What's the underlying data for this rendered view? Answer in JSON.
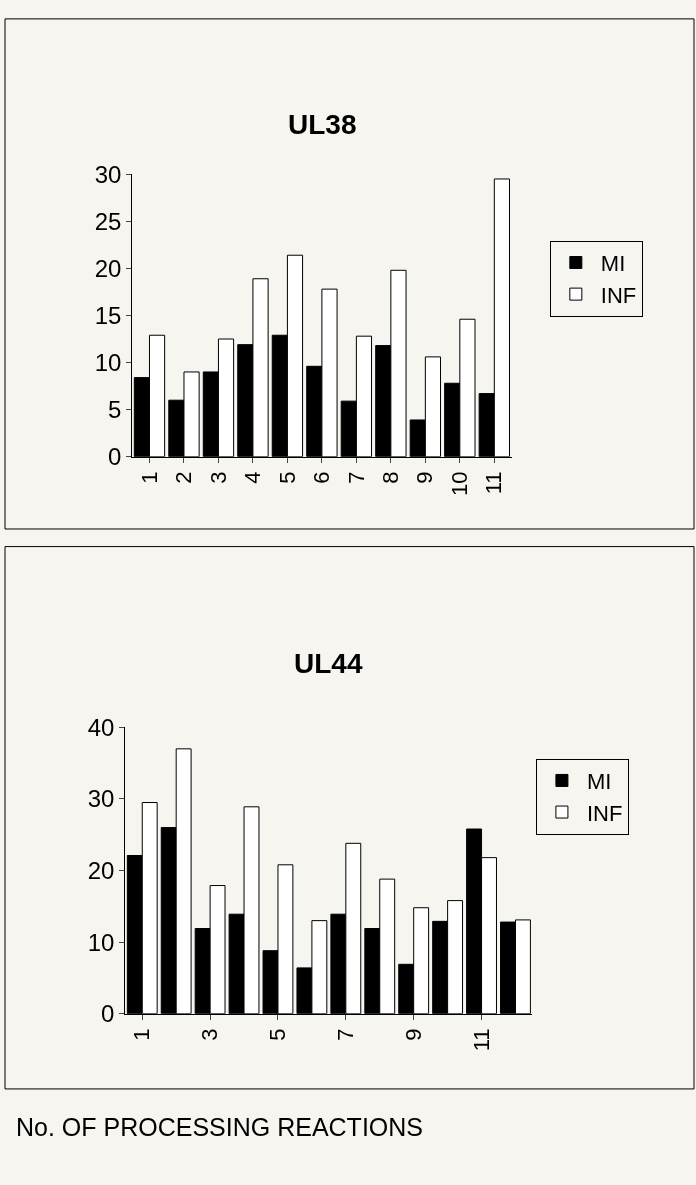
{
  "chart_data": [
    {
      "type": "bar",
      "title": "UL38",
      "categories": [
        "1",
        "2",
        "3",
        "4",
        "5",
        "6",
        "7",
        "8",
        "9",
        "10",
        "11"
      ],
      "series": [
        {
          "name": "MI",
          "color": "#000000",
          "values": [
            8.4,
            6.0,
            9.0,
            11.9,
            12.9,
            9.6,
            5.9,
            11.8,
            3.9,
            7.8,
            6.7
          ]
        },
        {
          "name": "INF",
          "color": "#ffffff",
          "values": [
            12.9,
            9.0,
            12.5,
            18.9,
            21.4,
            17.8,
            12.8,
            19.8,
            10.6,
            14.6,
            29.5
          ]
        }
      ],
      "ylim": [
        0,
        30
      ],
      "yticks": [
        0,
        5,
        10,
        15,
        20,
        25,
        30
      ],
      "legend": "right",
      "grid": false
    },
    {
      "type": "bar",
      "title": "UL44",
      "categories": [
        "1",
        null,
        "3",
        null,
        "5",
        null,
        "7",
        null,
        "9",
        null,
        "11",
        null
      ],
      "series": [
        {
          "name": "MI",
          "color": "#000000",
          "values": [
            22.1,
            26.0,
            11.9,
            13.9,
            8.8,
            6.4,
            13.9,
            11.9,
            6.9,
            12.9,
            25.8,
            12.8
          ]
        },
        {
          "name": "INF",
          "color": "#ffffff",
          "values": [
            29.5,
            37.0,
            17.9,
            28.9,
            20.8,
            13.0,
            23.8,
            18.8,
            14.8,
            15.8,
            21.8,
            13.1
          ]
        }
      ],
      "ylim": [
        0,
        40
      ],
      "yticks": [
        0,
        10,
        20,
        30,
        40
      ],
      "legend": "right",
      "grid": false,
      "annotations": [
        "No. OF PROCESSING REACTIONS"
      ]
    }
  ]
}
